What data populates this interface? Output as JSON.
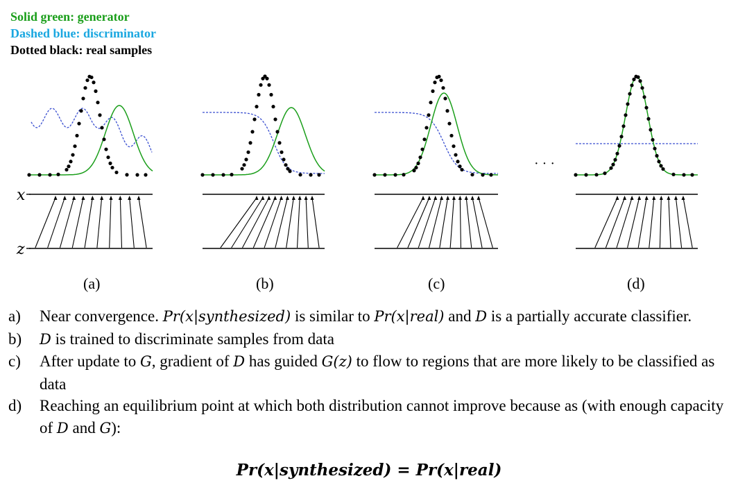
{
  "legend": {
    "generator": {
      "text": "Solid green: generator",
      "color": "#1a9e1a"
    },
    "discriminator": {
      "text": "Dashed blue: discriminator",
      "color": "#1aa7e0"
    },
    "real": {
      "text": "Dotted black: real samples",
      "color": "#000000"
    }
  },
  "axis_labels": {
    "x": "x",
    "z": "z"
  },
  "panels": [
    {
      "caption": "(a)"
    },
    {
      "caption": "(b)"
    },
    {
      "caption": "(c)"
    },
    {
      "caption": "(d)"
    }
  ],
  "ellipsis": "· · ·",
  "items": [
    {
      "label": "a)",
      "parts": [
        {
          "t": "Near convergence. "
        },
        {
          "t": "Pr(x|synthesized)",
          "m": true
        },
        {
          "t": " is similar to "
        },
        {
          "t": "Pr(x|real)",
          "m": true
        },
        {
          "t": " and "
        },
        {
          "t": "D",
          "m": true
        },
        {
          "t": " is a partially accurate classifier."
        }
      ]
    },
    {
      "label": "b)",
      "parts": [
        {
          "t": " "
        },
        {
          "t": "D",
          "m": true
        },
        {
          "t": " is trained to discriminate samples from data"
        }
      ]
    },
    {
      "label": "c)",
      "parts": [
        {
          "t": "After update to "
        },
        {
          "t": "G",
          "m": true
        },
        {
          "t": ", gradient of "
        },
        {
          "t": "D",
          "m": true
        },
        {
          "t": " has guided "
        },
        {
          "t": "G(z)",
          "m": true
        },
        {
          "t": " to flow to regions that are more likely to be classified as data"
        }
      ]
    },
    {
      "label": "d)",
      "parts": [
        {
          "t": "Reaching an equilibrium point at which both distribution cannot improve because as (with enough capacity of "
        },
        {
          "t": "D",
          "m": true
        },
        {
          "t": " and "
        },
        {
          "t": "G",
          "m": true
        },
        {
          "t": "):"
        }
      ]
    }
  ],
  "final_equation": "Pr(x|synthesized)  = Pr(x|real)"
}
